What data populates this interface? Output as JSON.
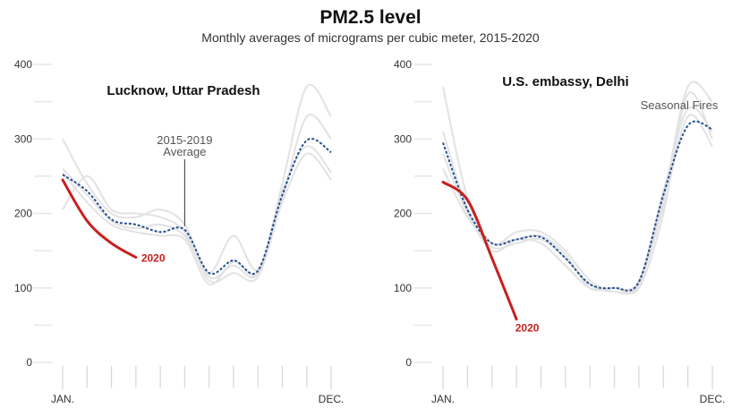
{
  "header": {
    "title": "PM2.5 level",
    "subtitle": "Monthly averages of micrograms per cubic meter, 2015-2020"
  },
  "colors": {
    "year_lines": "#e2e2e2",
    "average": "#24508f",
    "current": "#c8201e",
    "grid": "#e6e6e6",
    "axis_text": "#333333"
  },
  "chart_data": [
    {
      "type": "line",
      "title": "Lucknow, Uttar Pradesh",
      "x_labels": [
        "JAN.",
        "DEC."
      ],
      "y_ticks": [
        0,
        100,
        200,
        300,
        400
      ],
      "ylim": [
        0,
        400
      ],
      "months": [
        1,
        2,
        3,
        4,
        5,
        6,
        7,
        8,
        9,
        10,
        11,
        12
      ],
      "series": [
        {
          "values": [
            300,
            240,
            200,
            195,
            205,
            185,
            115,
            130,
            120,
            240,
            370,
            330
          ]
        },
        {
          "values": [
            205,
            250,
            205,
            200,
            195,
            175,
            110,
            120,
            115,
            220,
            330,
            300
          ]
        },
        {
          "values": [
            260,
            225,
            190,
            180,
            185,
            170,
            120,
            170,
            125,
            230,
            290,
            255
          ]
        },
        {
          "values": [
            255,
            215,
            185,
            175,
            170,
            165,
            105,
            135,
            120,
            215,
            280,
            245
          ]
        },
        {
          "name": "2015-2019 Average",
          "role": "average",
          "values": [
            252,
            230,
            192,
            185,
            175,
            178,
            120,
            137,
            123,
            225,
            298,
            282
          ]
        },
        {
          "name": "2020",
          "role": "current",
          "values": [
            245,
            190,
            160,
            141
          ]
        }
      ],
      "annotations": [
        {
          "text_lines": [
            "2015-2019",
            "Average"
          ]
        },
        {
          "text": "2020"
        }
      ]
    },
    {
      "type": "line",
      "title": "U.S. embassy, Delhi",
      "x_labels": [
        "JAN.",
        "DEC."
      ],
      "y_ticks": [
        0,
        100,
        200,
        300,
        400
      ],
      "ylim": [
        0,
        400
      ],
      "months": [
        1,
        2,
        3,
        4,
        5,
        6,
        7,
        8,
        9,
        10,
        11,
        12
      ],
      "series": [
        {
          "values": [
            370,
            220,
            160,
            175,
            175,
            150,
            110,
            95,
            105,
            220,
            370,
            350
          ]
        },
        {
          "values": [
            310,
            205,
            150,
            165,
            170,
            145,
            100,
            100,
            100,
            200,
            360,
            300
          ]
        },
        {
          "values": [
            280,
            200,
            155,
            160,
            165,
            140,
            105,
            95,
            105,
            210,
            330,
            290
          ]
        },
        {
          "values": [
            260,
            195,
            160,
            165,
            160,
            130,
            100,
            100,
            110,
            230,
            340,
            310
          ]
        },
        {
          "name": "2015-2019 Average",
          "role": "average",
          "values": [
            295,
            205,
            160,
            165,
            168,
            140,
            105,
            100,
            108,
            225,
            318,
            313
          ]
        },
        {
          "name": "2020",
          "role": "current",
          "values": [
            242,
            218,
            140,
            58
          ]
        }
      ],
      "annotations": [
        {
          "text": "Seasonal Fires"
        },
        {
          "text": "2020"
        }
      ]
    }
  ]
}
